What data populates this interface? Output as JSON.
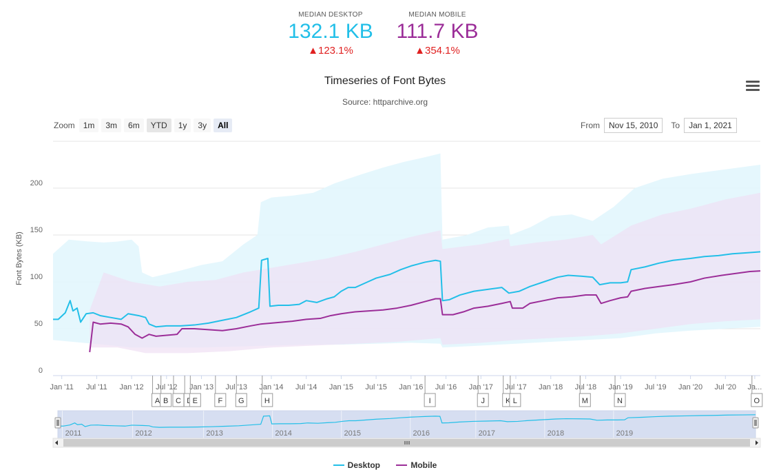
{
  "metrics": {
    "desktop": {
      "label": "MEDIAN DESKTOP",
      "value": "132.1 KB",
      "change": "▲123.1%"
    },
    "mobile": {
      "label": "MEDIAN MOBILE",
      "value": "111.7 KB",
      "change": "▲354.1%"
    }
  },
  "toolbar": {
    "zoom_label": "Zoom",
    "buttons": [
      "1m",
      "3m",
      "6m",
      "YTD",
      "1y",
      "3y",
      "All"
    ],
    "selected": "All",
    "from_label": "From",
    "from_value": "Nov 15, 2010",
    "to_label": "To",
    "to_value": "Jan 1, 2021"
  },
  "icons": {
    "menu": "hamburger-menu-icon",
    "nav_left": "arrow-left-icon",
    "nav_right": "arrow-right-icon"
  },
  "colors": {
    "desktop": "#22bfe8",
    "mobile": "#9b2d98",
    "desktop_band": "#e0f6fd",
    "mobile_band": "#efe0f3",
    "change": "#e02020"
  },
  "chart_data": {
    "type": "line",
    "title": "Timeseries of Font Bytes",
    "subtitle": "Source: httparchive.org",
    "ylabel": "Font Bytes (KB)",
    "ylim": [
      0,
      250
    ],
    "yticks": [
      0,
      50,
      100,
      150,
      200
    ],
    "xlim": [
      2010.875,
      2021.0
    ],
    "xticks": [
      {
        "x": 2011.0,
        "label": "Jan '11"
      },
      {
        "x": 2011.5,
        "label": "Jul '11"
      },
      {
        "x": 2012.0,
        "label": "Jan '12"
      },
      {
        "x": 2012.5,
        "label": "Jul '12"
      },
      {
        "x": 2013.0,
        "label": "Jan '13"
      },
      {
        "x": 2013.5,
        "label": "Jul '13"
      },
      {
        "x": 2014.0,
        "label": "Jan '14"
      },
      {
        "x": 2014.5,
        "label": "Jul '14"
      },
      {
        "x": 2015.0,
        "label": "Jan '15"
      },
      {
        "x": 2015.5,
        "label": "Jul '15"
      },
      {
        "x": 2016.0,
        "label": "Jan '16"
      },
      {
        "x": 2016.5,
        "label": "Jul '16"
      },
      {
        "x": 2017.0,
        "label": "Jan '17"
      },
      {
        "x": 2017.5,
        "label": "Jul '17"
      },
      {
        "x": 2018.0,
        "label": "Jan '18"
      },
      {
        "x": 2018.5,
        "label": "Jul '18"
      },
      {
        "x": 2019.0,
        "label": "Jan '19"
      },
      {
        "x": 2019.5,
        "label": "Jul '19"
      },
      {
        "x": 2020.0,
        "label": "Jan '20"
      },
      {
        "x": 2020.5,
        "label": "Jul '20"
      },
      {
        "x": 2020.92,
        "label": "Ja..."
      }
    ],
    "flags": [
      {
        "x": 2012.3,
        "label": "A"
      },
      {
        "x": 2012.42,
        "label": "B"
      },
      {
        "x": 2012.6,
        "label": "C"
      },
      {
        "x": 2012.76,
        "label": "D"
      },
      {
        "x": 2012.84,
        "label": "E"
      },
      {
        "x": 2013.2,
        "label": "F"
      },
      {
        "x": 2013.5,
        "label": "G"
      },
      {
        "x": 2013.87,
        "label": "H"
      },
      {
        "x": 2016.2,
        "label": "I"
      },
      {
        "x": 2016.96,
        "label": "J"
      },
      {
        "x": 2017.32,
        "label": "K"
      },
      {
        "x": 2017.42,
        "label": "L"
      },
      {
        "x": 2018.42,
        "label": "M"
      },
      {
        "x": 2018.92,
        "label": "N"
      },
      {
        "x": 2020.88,
        "label": "O"
      }
    ],
    "navigator_labels": [
      {
        "x": 2011.1,
        "label": "2011"
      },
      {
        "x": 2012.12,
        "label": "2012"
      },
      {
        "x": 2013.15,
        "label": "2013"
      },
      {
        "x": 2014.15,
        "label": "2014"
      },
      {
        "x": 2015.15,
        "label": "2015"
      },
      {
        "x": 2016.15,
        "label": "2016"
      },
      {
        "x": 2017.1,
        "label": "2017"
      },
      {
        "x": 2018.1,
        "label": "2018"
      },
      {
        "x": 2019.1,
        "label": "2019"
      }
    ],
    "legend_placement": "bottom-center",
    "grid": true,
    "series": [
      {
        "name": "Desktop",
        "points": [
          [
            2010.875,
            60
          ],
          [
            2010.95,
            60
          ],
          [
            2011.05,
            67
          ],
          [
            2011.12,
            80
          ],
          [
            2011.16,
            69
          ],
          [
            2011.22,
            72
          ],
          [
            2011.27,
            57
          ],
          [
            2011.35,
            66
          ],
          [
            2011.45,
            67
          ],
          [
            2011.55,
            64
          ],
          [
            2011.7,
            62
          ],
          [
            2011.85,
            60
          ],
          [
            2011.95,
            66
          ],
          [
            2012.1,
            64
          ],
          [
            2012.2,
            62
          ],
          [
            2012.25,
            55
          ],
          [
            2012.35,
            52
          ],
          [
            2012.5,
            53
          ],
          [
            2012.7,
            53
          ],
          [
            2012.9,
            54
          ],
          [
            2013.1,
            56
          ],
          [
            2013.3,
            59
          ],
          [
            2013.5,
            62
          ],
          [
            2013.7,
            68
          ],
          [
            2013.82,
            72
          ],
          [
            2013.86,
            123
          ],
          [
            2013.95,
            125
          ],
          [
            2013.98,
            74
          ],
          [
            2014.1,
            75
          ],
          [
            2014.25,
            75
          ],
          [
            2014.4,
            76
          ],
          [
            2014.5,
            80
          ],
          [
            2014.65,
            78
          ],
          [
            2014.8,
            82
          ],
          [
            2014.9,
            84
          ],
          [
            2015.0,
            90
          ],
          [
            2015.1,
            94
          ],
          [
            2015.2,
            94
          ],
          [
            2015.35,
            99
          ],
          [
            2015.5,
            104
          ],
          [
            2015.7,
            108
          ],
          [
            2015.85,
            113
          ],
          [
            2016.0,
            117
          ],
          [
            2016.1,
            119
          ],
          [
            2016.2,
            121
          ],
          [
            2016.35,
            123
          ],
          [
            2016.42,
            122
          ],
          [
            2016.45,
            80
          ],
          [
            2016.55,
            81
          ],
          [
            2016.7,
            86
          ],
          [
            2016.9,
            90
          ],
          [
            2017.1,
            92
          ],
          [
            2017.3,
            94
          ],
          [
            2017.4,
            88
          ],
          [
            2017.55,
            90
          ],
          [
            2017.7,
            95
          ],
          [
            2017.9,
            100
          ],
          [
            2018.1,
            105
          ],
          [
            2018.25,
            107
          ],
          [
            2018.45,
            106
          ],
          [
            2018.6,
            105
          ],
          [
            2018.7,
            97
          ],
          [
            2018.85,
            99
          ],
          [
            2019.0,
            99
          ],
          [
            2019.1,
            100
          ],
          [
            2019.15,
            113
          ],
          [
            2019.35,
            116
          ],
          [
            2019.55,
            120
          ],
          [
            2019.75,
            123
          ],
          [
            2020.0,
            125
          ],
          [
            2020.2,
            127
          ],
          [
            2020.4,
            128
          ],
          [
            2020.6,
            130
          ],
          [
            2020.8,
            131
          ],
          [
            2021.0,
            132.1
          ]
        ]
      },
      {
        "name": "Mobile",
        "points": [
          [
            2011.4,
            25
          ],
          [
            2011.45,
            57
          ],
          [
            2011.55,
            55
          ],
          [
            2011.7,
            56
          ],
          [
            2011.85,
            55
          ],
          [
            2011.95,
            52
          ],
          [
            2012.05,
            44
          ],
          [
            2012.15,
            40
          ],
          [
            2012.25,
            44
          ],
          [
            2012.35,
            42
          ],
          [
            2012.5,
            43
          ],
          [
            2012.65,
            44
          ],
          [
            2012.72,
            50
          ],
          [
            2012.9,
            50
          ],
          [
            2013.1,
            49
          ],
          [
            2013.3,
            48
          ],
          [
            2013.5,
            50
          ],
          [
            2013.7,
            53
          ],
          [
            2013.85,
            55
          ],
          [
            2014.0,
            56
          ],
          [
            2014.15,
            57
          ],
          [
            2014.3,
            58
          ],
          [
            2014.5,
            60
          ],
          [
            2014.7,
            61
          ],
          [
            2014.85,
            64
          ],
          [
            2015.0,
            66
          ],
          [
            2015.2,
            68
          ],
          [
            2015.4,
            69
          ],
          [
            2015.6,
            70
          ],
          [
            2015.8,
            72
          ],
          [
            2016.0,
            75
          ],
          [
            2016.2,
            79
          ],
          [
            2016.35,
            82
          ],
          [
            2016.42,
            82
          ],
          [
            2016.45,
            65
          ],
          [
            2016.6,
            65
          ],
          [
            2016.75,
            68
          ],
          [
            2016.9,
            72
          ],
          [
            2017.1,
            74
          ],
          [
            2017.3,
            77
          ],
          [
            2017.42,
            79
          ],
          [
            2017.45,
            72
          ],
          [
            2017.6,
            72
          ],
          [
            2017.7,
            77
          ],
          [
            2017.9,
            80
          ],
          [
            2018.1,
            83
          ],
          [
            2018.3,
            84
          ],
          [
            2018.5,
            86
          ],
          [
            2018.65,
            86
          ],
          [
            2018.72,
            77
          ],
          [
            2018.85,
            80
          ],
          [
            2019.0,
            83
          ],
          [
            2019.1,
            84
          ],
          [
            2019.15,
            90
          ],
          [
            2019.35,
            93
          ],
          [
            2019.55,
            95
          ],
          [
            2019.75,
            97
          ],
          [
            2020.0,
            100
          ],
          [
            2020.2,
            104
          ],
          [
            2020.45,
            107
          ],
          [
            2020.65,
            109
          ],
          [
            2020.85,
            111
          ],
          [
            2021.0,
            111.7
          ]
        ]
      }
    ],
    "bands": [
      {
        "name": "Desktop",
        "upper": [
          [
            2010.875,
            130
          ],
          [
            2011.1,
            145
          ],
          [
            2011.4,
            143
          ],
          [
            2011.6,
            142
          ],
          [
            2011.8,
            143
          ],
          [
            2012.0,
            145
          ],
          [
            2012.1,
            138
          ],
          [
            2012.15,
            110
          ],
          [
            2012.3,
            105
          ],
          [
            2012.7,
            112
          ],
          [
            2013.0,
            118
          ],
          [
            2013.3,
            122
          ],
          [
            2013.6,
            140
          ],
          [
            2013.8,
            150
          ],
          [
            2013.85,
            185
          ],
          [
            2014.0,
            190
          ],
          [
            2014.3,
            192
          ],
          [
            2014.6,
            195
          ],
          [
            2014.9,
            205
          ],
          [
            2015.1,
            210
          ],
          [
            2015.3,
            215
          ],
          [
            2015.6,
            222
          ],
          [
            2015.9,
            228
          ],
          [
            2016.2,
            233
          ],
          [
            2016.42,
            237
          ],
          [
            2016.45,
            145
          ],
          [
            2016.8,
            150
          ],
          [
            2017.1,
            158
          ],
          [
            2017.4,
            160
          ],
          [
            2017.42,
            150
          ],
          [
            2017.7,
            158
          ],
          [
            2018.0,
            170
          ],
          [
            2018.3,
            172
          ],
          [
            2018.6,
            165
          ],
          [
            2018.9,
            180
          ],
          [
            2019.2,
            200
          ],
          [
            2019.6,
            210
          ],
          [
            2020.0,
            215
          ],
          [
            2020.5,
            220
          ],
          [
            2021.0,
            225
          ]
        ],
        "lower": [
          [
            2010.875,
            38
          ],
          [
            2011.3,
            35
          ],
          [
            2011.6,
            33
          ],
          [
            2012.0,
            30
          ],
          [
            2012.5,
            30
          ],
          [
            2013.0,
            30
          ],
          [
            2013.5,
            31
          ],
          [
            2014.0,
            32
          ],
          [
            2014.5,
            33
          ],
          [
            2015.0,
            33
          ],
          [
            2015.5,
            34
          ],
          [
            2016.0,
            35
          ],
          [
            2016.42,
            34
          ],
          [
            2016.45,
            30
          ],
          [
            2017.0,
            32
          ],
          [
            2017.5,
            34
          ],
          [
            2018.0,
            36
          ],
          [
            2018.5,
            38
          ],
          [
            2019.0,
            40
          ],
          [
            2019.5,
            45
          ],
          [
            2020.0,
            48
          ],
          [
            2020.5,
            50
          ],
          [
            2021.0,
            52
          ]
        ]
      },
      {
        "name": "Mobile",
        "upper": [
          [
            2011.4,
            70
          ],
          [
            2011.6,
            110
          ],
          [
            2012.0,
            100
          ],
          [
            2012.4,
            95
          ],
          [
            2012.8,
            100
          ],
          [
            2013.2,
            102
          ],
          [
            2013.6,
            110
          ],
          [
            2014.0,
            115
          ],
          [
            2014.4,
            120
          ],
          [
            2014.8,
            125
          ],
          [
            2015.2,
            132
          ],
          [
            2015.6,
            140
          ],
          [
            2016.0,
            148
          ],
          [
            2016.42,
            155
          ],
          [
            2016.45,
            135
          ],
          [
            2017.0,
            140
          ],
          [
            2017.4,
            146
          ],
          [
            2017.42,
            138
          ],
          [
            2017.8,
            142
          ],
          [
            2018.2,
            145
          ],
          [
            2018.6,
            150
          ],
          [
            2018.72,
            140
          ],
          [
            2019.15,
            160
          ],
          [
            2019.6,
            172
          ],
          [
            2020.0,
            178
          ],
          [
            2020.5,
            188
          ],
          [
            2021.0,
            195
          ]
        ],
        "lower": [
          [
            2011.4,
            30
          ],
          [
            2011.8,
            30
          ],
          [
            2012.2,
            24
          ],
          [
            2012.8,
            24
          ],
          [
            2013.4,
            26
          ],
          [
            2014.0,
            30
          ],
          [
            2014.6,
            32
          ],
          [
            2015.2,
            34
          ],
          [
            2015.8,
            36
          ],
          [
            2016.42,
            40
          ],
          [
            2016.45,
            33
          ],
          [
            2017.0,
            35
          ],
          [
            2017.5,
            38
          ],
          [
            2018.0,
            40
          ],
          [
            2018.5,
            42
          ],
          [
            2019.0,
            45
          ],
          [
            2019.5,
            50
          ],
          [
            2020.0,
            55
          ],
          [
            2020.5,
            58
          ],
          [
            2021.0,
            60
          ]
        ]
      }
    ]
  },
  "legend": {
    "desktop": "Desktop",
    "mobile": "Mobile"
  }
}
